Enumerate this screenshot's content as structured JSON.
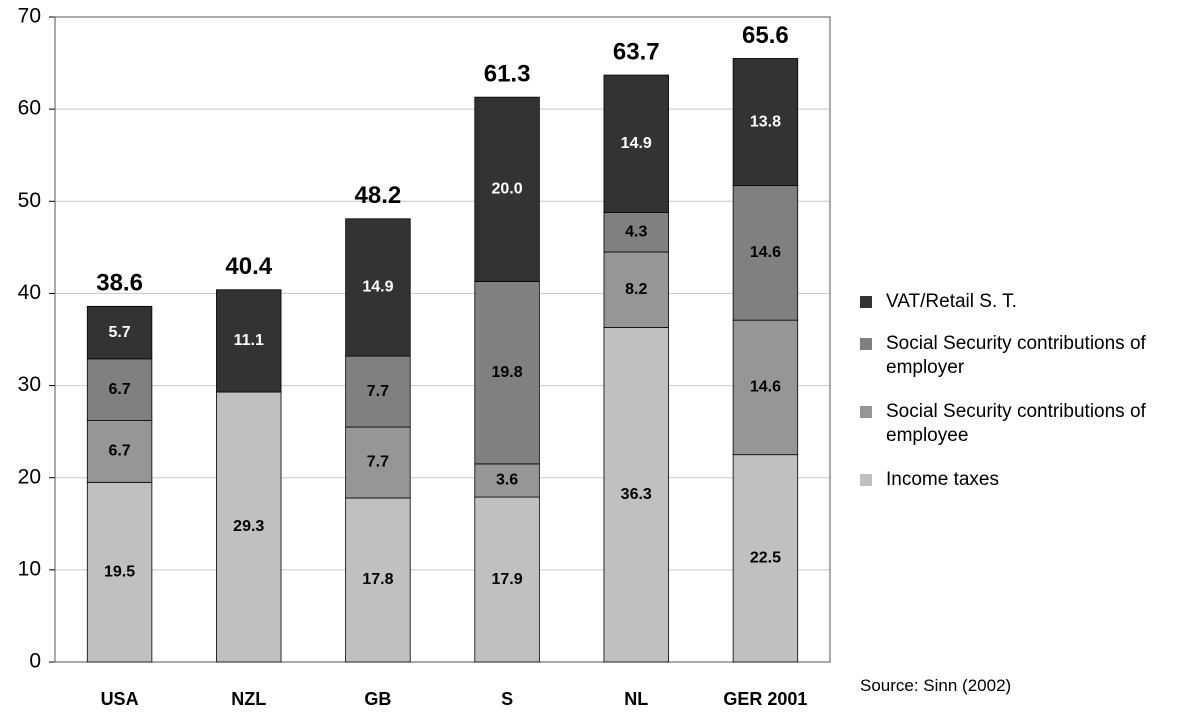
{
  "chart_data": {
    "type": "stacked_bar",
    "categories": [
      "USA",
      "NZL",
      "GB",
      "S",
      "NL",
      "GER 2001"
    ],
    "series": [
      {
        "name": "Income taxes",
        "color": "#c0c0c0",
        "values": [
          19.5,
          29.3,
          17.8,
          17.9,
          36.3,
          22.5
        ]
      },
      {
        "name": "Social Security contributions of employee",
        "color": "#969696",
        "values": [
          6.7,
          null,
          7.7,
          3.6,
          8.2,
          14.6
        ]
      },
      {
        "name": "Social Security contributions of employer",
        "color": "#808080",
        "values": [
          6.7,
          null,
          7.7,
          19.8,
          4.3,
          14.6
        ]
      },
      {
        "name": "VAT/Retail S. T.",
        "color": "#333333",
        "values": [
          5.7,
          11.1,
          14.9,
          20.0,
          14.9,
          13.8
        ],
        "value_labels": [
          "5.7",
          "11.1",
          "14.9",
          "20.0",
          "14.9",
          "13.8"
        ]
      }
    ],
    "totals": [
      38.6,
      40.4,
      48.2,
      61.3,
      63.7,
      65.6
    ],
    "ylim": [
      0,
      70
    ],
    "yticks": [
      0,
      10,
      20,
      30,
      40,
      50,
      60,
      70
    ],
    "grid": true,
    "source": "Source: Sinn (2002)"
  }
}
